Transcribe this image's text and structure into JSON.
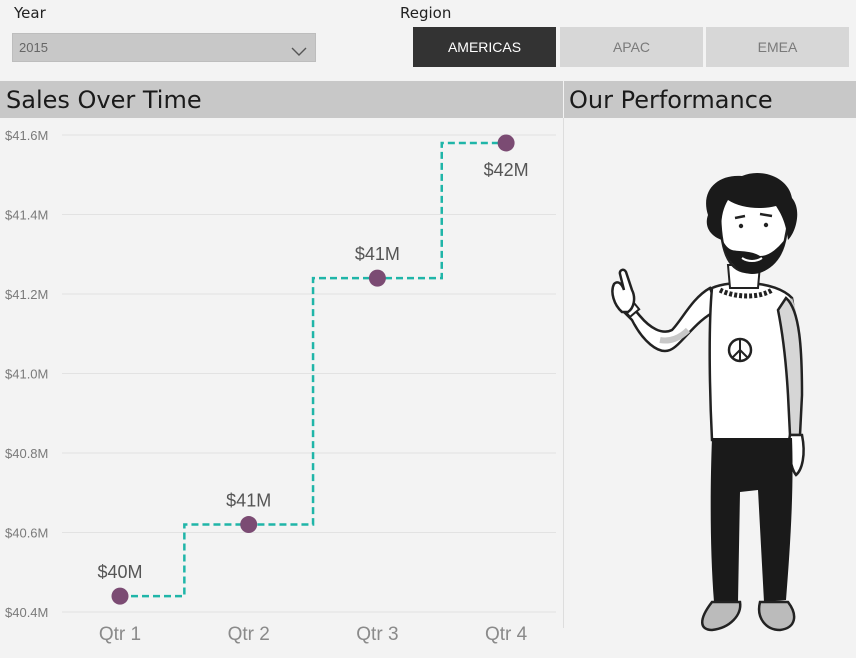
{
  "filters": {
    "year_label": "Year",
    "year_value": "2015",
    "region_label": "Region",
    "regions": [
      "AMERICAS",
      "APAC",
      "EMEA"
    ],
    "active_region": "AMERICAS"
  },
  "sections": {
    "chart_title": "Sales Over Time",
    "performance_title": "Our Performance"
  },
  "colors": {
    "line": "#1fb5a8",
    "marker": "#7b4b73",
    "active_button": "#333333",
    "inactive_button": "#d7d7d7",
    "header_band": "#c8c8c8"
  },
  "illustration": {
    "icon": "pointing-person-illustration"
  },
  "chart_data": {
    "type": "line",
    "title": "Sales Over Time",
    "xlabel": "",
    "ylabel": "",
    "categories": [
      "Qtr 1",
      "Qtr 2",
      "Qtr 3",
      "Qtr 4"
    ],
    "series": [
      {
        "values": [
          40.44,
          40.62,
          41.24,
          41.58
        ],
        "data_labels": [
          "$40M",
          "$41M",
          "$41M",
          "$42M"
        ],
        "line_style": "stepped-dashed"
      }
    ],
    "ylim": [
      40.4,
      41.6
    ],
    "y_ticks": [
      "$40.4M",
      "$40.6M",
      "$40.8M",
      "$41.0M",
      "$41.2M",
      "$41.4M",
      "$41.6M"
    ],
    "y_tick_values": [
      40.4,
      40.6,
      40.8,
      41.0,
      41.2,
      41.4,
      41.6
    ],
    "grid": true,
    "legend": "none"
  }
}
